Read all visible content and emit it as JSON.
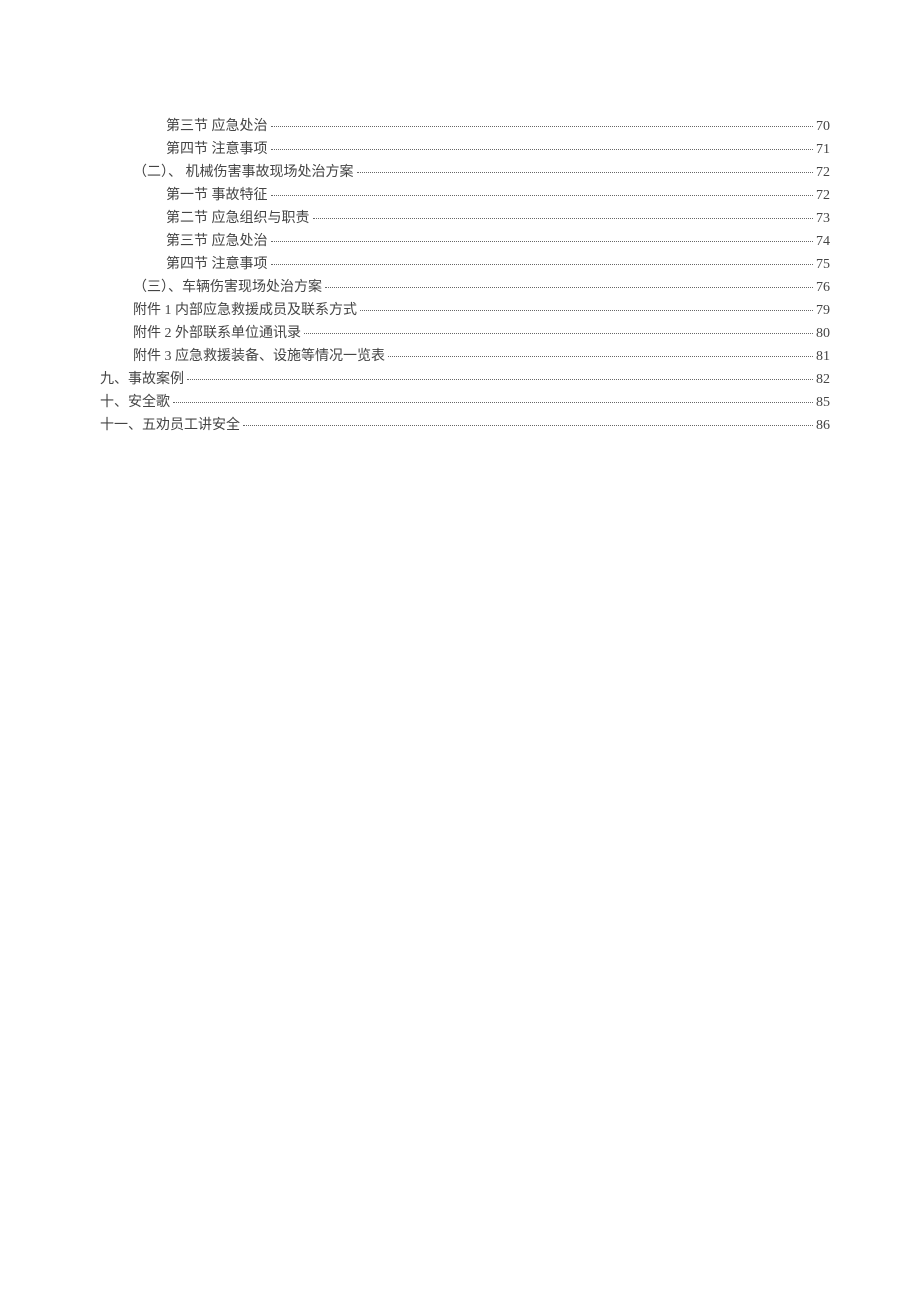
{
  "toc": {
    "font_family": "SimSun",
    "font_size": 14,
    "line_height": 23,
    "text_color": "#444444",
    "dot_color": "#666666",
    "background_color": "#ffffff",
    "entries": [
      {
        "label": "第三节 应急处治",
        "page": "70",
        "indent": 3
      },
      {
        "label": "第四节 注意事项",
        "page": "71",
        "indent": 3
      },
      {
        "label": "（二）、 机械伤害事故现场处治方案",
        "page": "72",
        "indent": 2
      },
      {
        "label": "第一节 事故特征",
        "page": "72",
        "indent": 3
      },
      {
        "label": "第二节 应急组织与职责",
        "page": "73",
        "indent": 3
      },
      {
        "label": "第三节 应急处治",
        "page": "74",
        "indent": 3
      },
      {
        "label": "第四节 注意事项",
        "page": "75",
        "indent": 3
      },
      {
        "label": "（三）、车辆伤害现场处治方案",
        "page": "76",
        "indent": 2
      },
      {
        "label": "附件 1 内部应急救援成员及联系方式",
        "page": "79",
        "indent": 1
      },
      {
        "label": "附件 2   外部联系单位通讯录",
        "page": "80",
        "indent": 1
      },
      {
        "label": "附件 3 应急救援装备、设施等情况一览表",
        "page": "81",
        "indent": 1
      },
      {
        "label": "九、事故案例",
        "page": "82",
        "indent": 0
      },
      {
        "label": "十、安全歌",
        "page": "85",
        "indent": 0
      },
      {
        "label": "十一、五劝员工讲安全",
        "page": "86",
        "indent": 0
      }
    ]
  }
}
